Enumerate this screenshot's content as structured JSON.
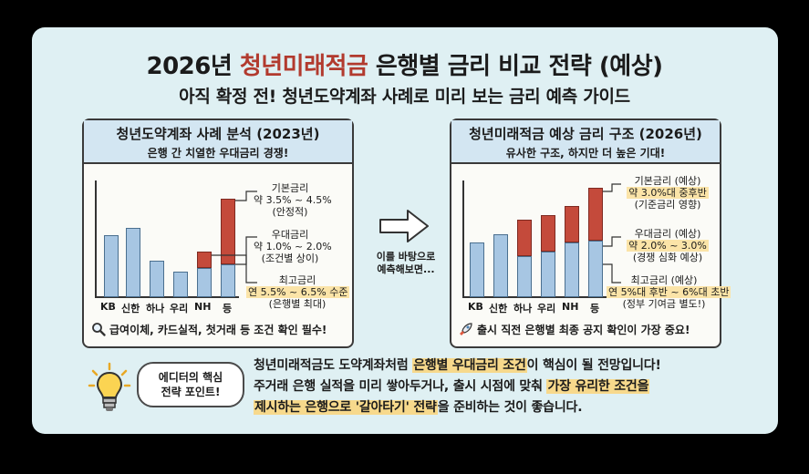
{
  "header": {
    "title_pre": "2026년 ",
    "title_hl": "청년미래적금",
    "title_post": " 은행별 금리 비교 전략 (예상)",
    "subtitle": "아직 확정 전! 청년도약계좌 사례로 미리 보는 금리 예측 가이드"
  },
  "left_panel": {
    "title": "청년도약계좌 사례 분석 (2023년)",
    "subtitle": "은행 간 치열한 우대금리 경쟁!",
    "x_labels": [
      "KB",
      "신한",
      "하나",
      "우리",
      "NH",
      "등"
    ],
    "ann_base": [
      "기본금리",
      "약 3.5% ~ 4.5%",
      "(안정적)"
    ],
    "ann_pref": [
      "우대금리",
      "약 1.0% ~ 2.0%",
      "(조건별 상이)"
    ],
    "ann_max": [
      "최고금리",
      "연 5.5% ~ 6.5% 수준",
      "(은행별 최대)"
    ],
    "footer": "급여이체, 카드실적, 첫거래 등 조건 확인 필수!"
  },
  "arrow": {
    "caption_1": "이를 바탕으로",
    "caption_2": "예측해보면..."
  },
  "right_panel": {
    "title": "청년미래적금 예상 금리 구조 (2026년)",
    "subtitle": "유사한 구조, 하지만 더 높은 기대!",
    "x_labels": [
      "KB",
      "신한",
      "하나",
      "우리",
      "NH",
      "등"
    ],
    "ann_base": [
      "기본금리 (예상)",
      "약 3.0%대 중후반",
      "(기준금리 영향)"
    ],
    "ann_pref": [
      "우대금리 (예상)",
      "약 2.0% ~ 3.0%",
      "(경쟁 심화 예상)"
    ],
    "ann_max": [
      "최고금리 (예상)",
      "연 5%대 후반 ~ 6%대 초반",
      "(정부 기여금 별도!)"
    ],
    "footer": "출시 직전 은행별 최종 공지 확인이 가장 중요!"
  },
  "tip": {
    "bubble_1": "에디터의 핵심",
    "bubble_2": "전략 포인트!",
    "l1_a": "청년미래적금도 도약계좌처럼 ",
    "l1_b": "은행별 우대금리 조건",
    "l1_c": "이 핵심이 될 전망입니다!",
    "l2_a": "주거래 은행 실적을 미리 쌓아두거나, 출시 시점에 맞춰 ",
    "l2_b": "가장 유리한 조건을",
    "l3_a": "제시하는 은행으로 '갈아타기' 전략",
    "l3_b": "을 준비하는 것이 좋습니다."
  },
  "colors": {
    "base_bar": "#a7c6e3",
    "pref_bar": "#c44a3b",
    "highlight": "#f7d98c",
    "title_accent": "#b23a2e"
  },
  "icons": [
    "magnifier-icon",
    "rocket-icon",
    "lightbulb-icon",
    "arrow-right-icon"
  ]
}
